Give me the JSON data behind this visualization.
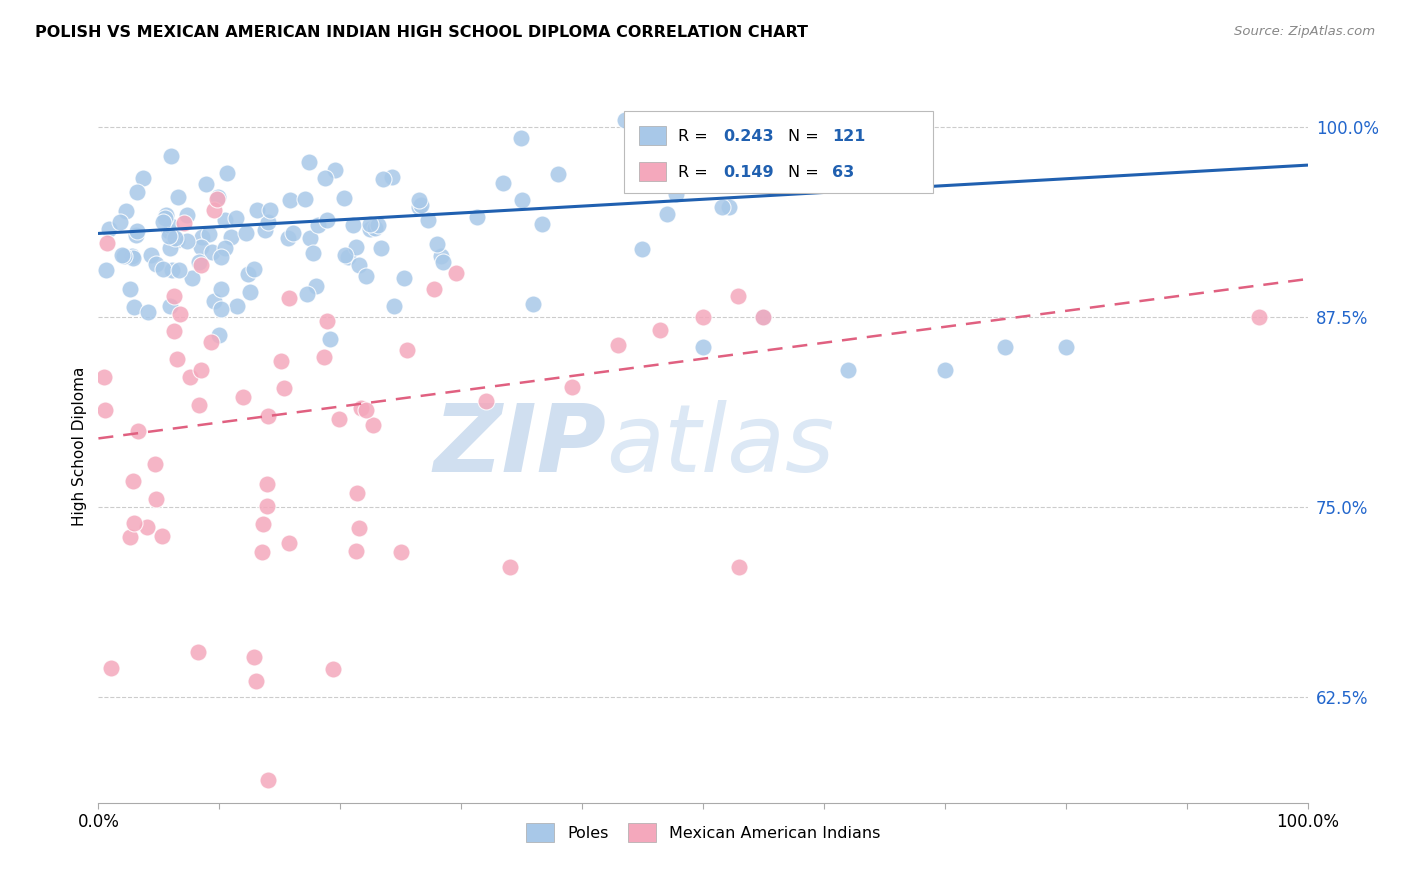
{
  "title": "POLISH VS MEXICAN AMERICAN INDIAN HIGH SCHOOL DIPLOMA CORRELATION CHART",
  "source": "Source: ZipAtlas.com",
  "ylabel": "High School Diploma",
  "legend_entries": [
    "Poles",
    "Mexican American Indians"
  ],
  "blue_R": 0.243,
  "blue_N": 121,
  "pink_R": 0.149,
  "pink_N": 63,
  "blue_color": "#a8c8e8",
  "pink_color": "#f4a8bc",
  "blue_line_color": "#2060b0",
  "pink_line_color": "#e06080",
  "watermark_zip": "ZIP",
  "watermark_atlas": "atlas",
  "watermark_color": "#d0dff0",
  "xmin": 0.0,
  "xmax": 1.0,
  "ymin": 0.555,
  "ymax": 1.025,
  "yticks": [
    0.625,
    0.75,
    0.875,
    1.0
  ],
  "ytick_labels": [
    "62.5%",
    "75.0%",
    "87.5%",
    "100.0%"
  ],
  "xtick_labels": [
    "0.0%",
    "100.0%"
  ],
  "blue_line_y0": 0.93,
  "blue_line_y1": 0.975,
  "pink_line_y0": 0.795,
  "pink_line_y1": 0.9
}
